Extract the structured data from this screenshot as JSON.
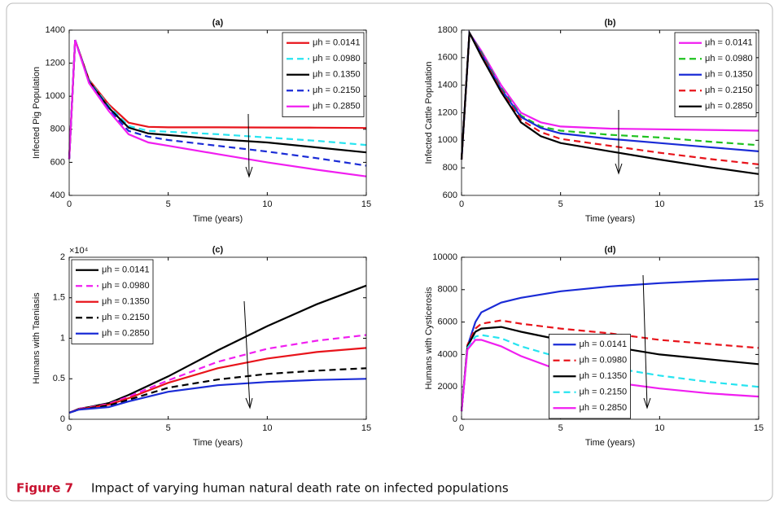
{
  "caption_label": "Figure 7",
  "caption": "Impact of varying human natural death rate on infected populations",
  "chart_data": [
    {
      "type": "line",
      "title": "(a)",
      "x_label": "Time (years)",
      "y_label": "Infected Pig Population",
      "legend": "upper right",
      "xlim": [
        0,
        15
      ],
      "xticks": [
        0,
        5,
        10,
        15
      ],
      "ylim": [
        400,
        1400
      ],
      "yticks": [
        400,
        600,
        800,
        1000,
        1200,
        1400
      ],
      "x": [
        0,
        0.3,
        1,
        2,
        3,
        4,
        5,
        7.5,
        10,
        12.5,
        15
      ],
      "series": [
        {
          "name": "μh = 0.0141",
          "color": "#e8141b",
          "dashed": false,
          "values": [
            620,
            1340,
            1100,
            950,
            840,
            815,
            812,
            812,
            811,
            810,
            808
          ]
        },
        {
          "name": "μh = 0.0980",
          "color": "#27e4f0",
          "dashed": true,
          "values": [
            620,
            1340,
            1095,
            940,
            820,
            790,
            785,
            770,
            750,
            730,
            705
          ]
        },
        {
          "name": "μh = 0.1350",
          "color": "#000000",
          "dashed": false,
          "values": [
            620,
            1340,
            1090,
            930,
            810,
            775,
            765,
            740,
            720,
            690,
            660
          ]
        },
        {
          "name": "μh = 0.2150",
          "color": "#1a2bd6",
          "dashed": true,
          "values": [
            620,
            1340,
            1085,
            920,
            790,
            755,
            735,
            700,
            665,
            625,
            580
          ]
        },
        {
          "name": "μh = 0.2850",
          "color": "#f01ef0",
          "dashed": false,
          "values": [
            620,
            1340,
            1080,
            910,
            770,
            720,
            700,
            650,
            600,
            555,
            515
          ]
        }
      ]
    },
    {
      "type": "line",
      "title": "(b)",
      "x_label": "Time (years)",
      "y_label": "Infected Cattle Population",
      "legend": "upper right",
      "xlim": [
        0,
        15
      ],
      "xticks": [
        0,
        5,
        10,
        15
      ],
      "ylim": [
        600,
        1800
      ],
      "yticks": [
        600,
        800,
        1000,
        1200,
        1400,
        1600,
        1800
      ],
      "x": [
        0,
        0.4,
        1,
        2,
        3,
        4,
        5,
        7.5,
        10,
        12.5,
        15
      ],
      "series": [
        {
          "name": "μh = 0.0141",
          "color": "#f01ef0",
          "dashed": false,
          "values": [
            860,
            1780,
            1650,
            1400,
            1200,
            1130,
            1100,
            1085,
            1080,
            1075,
            1070
          ]
        },
        {
          "name": "μh = 0.0980",
          "color": "#1fc21f",
          "dashed": true,
          "values": [
            860,
            1780,
            1640,
            1380,
            1180,
            1100,
            1070,
            1040,
            1020,
            990,
            965
          ]
        },
        {
          "name": "μh = 0.1350",
          "color": "#1a2bd6",
          "dashed": false,
          "values": [
            860,
            1780,
            1630,
            1370,
            1170,
            1090,
            1050,
            1010,
            980,
            950,
            920
          ]
        },
        {
          "name": "μh = 0.2150",
          "color": "#e8141b",
          "dashed": true,
          "values": [
            860,
            1780,
            1620,
            1360,
            1150,
            1060,
            1010,
            960,
            910,
            865,
            825
          ]
        },
        {
          "name": "μh = 0.2850",
          "color": "#000000",
          "dashed": false,
          "values": [
            860,
            1780,
            1610,
            1350,
            1130,
            1030,
            980,
            920,
            860,
            805,
            755
          ]
        }
      ]
    },
    {
      "type": "line",
      "title": "(c)",
      "x_label": "Time (years)",
      "y_label": "Humans with Taeniasis",
      "y_exponent_label": "×10⁴",
      "legend": "upper left",
      "xlim": [
        0,
        15
      ],
      "xticks": [
        0,
        5,
        10,
        15
      ],
      "ylim": [
        0,
        20000
      ],
      "yticks": [
        0,
        {
          "value": 5000,
          "label": "0.5"
        },
        {
          "value": 10000,
          "label": "1"
        },
        {
          "value": 15000,
          "label": "1.5"
        },
        {
          "value": 20000,
          "label": "2"
        }
      ],
      "x": [
        0,
        0.5,
        1,
        2,
        3,
        5,
        7.5,
        10,
        12.5,
        15
      ],
      "series": [
        {
          "name": "μh = 0.0141",
          "color": "#000000",
          "dashed": false,
          "values": [
            800,
            1300,
            1500,
            2000,
            3000,
            5300,
            8500,
            11500,
            14200,
            16500
          ]
        },
        {
          "name": "μh = 0.0980",
          "color": "#f01ef0",
          "dashed": true,
          "values": [
            800,
            1300,
            1450,
            1900,
            2800,
            4800,
            7100,
            8700,
            9700,
            10400
          ]
        },
        {
          "name": "μh = 0.1350",
          "color": "#e8141b",
          "dashed": false,
          "values": [
            800,
            1250,
            1400,
            1800,
            2600,
            4500,
            6300,
            7500,
            8300,
            8800
          ]
        },
        {
          "name": "μh = 0.2150",
          "color": "#000000",
          "dashed": true,
          "values": [
            800,
            1200,
            1350,
            1700,
            2400,
            3900,
            4900,
            5600,
            6000,
            6300
          ]
        },
        {
          "name": "μh = 0.2850",
          "color": "#1a2bd6",
          "dashed": false,
          "values": [
            800,
            1200,
            1300,
            1500,
            2200,
            3400,
            4200,
            4600,
            4850,
            5000
          ]
        }
      ]
    },
    {
      "type": "line",
      "title": "(d)",
      "x_label": "Time (years)",
      "y_label": "Humans with Cysticerosis",
      "legend": "lower center",
      "xlim": [
        0,
        15
      ],
      "xticks": [
        0,
        5,
        10,
        15
      ],
      "ylim": [
        0,
        10000
      ],
      "yticks": [
        0,
        2000,
        4000,
        6000,
        8000,
        10000
      ],
      "x": [
        0,
        0.3,
        0.7,
        1,
        2,
        3,
        5,
        7.5,
        10,
        12.5,
        15
      ],
      "series": [
        {
          "name": "μh = 0.0141",
          "color": "#1a2bd6",
          "dashed": false,
          "values": [
            500,
            4500,
            6000,
            6600,
            7200,
            7500,
            7900,
            8200,
            8400,
            8550,
            8650
          ]
        },
        {
          "name": "μh = 0.0980",
          "color": "#e8141b",
          "dashed": true,
          "values": [
            500,
            4600,
            5600,
            5900,
            6100,
            5900,
            5600,
            5300,
            4900,
            4650,
            4400
          ]
        },
        {
          "name": "μh = 0.1350",
          "color": "#000000",
          "dashed": false,
          "values": [
            500,
            4500,
            5400,
            5600,
            5700,
            5400,
            4900,
            4500,
            4000,
            3700,
            3400
          ]
        },
        {
          "name": "μh = 0.2150",
          "color": "#27e4f0",
          "dashed": true,
          "values": [
            500,
            4400,
            5100,
            5200,
            5000,
            4500,
            3800,
            3200,
            2700,
            2300,
            2000
          ]
        },
        {
          "name": "μh = 0.2850",
          "color": "#f01ef0",
          "dashed": false,
          "values": [
            500,
            4300,
            4900,
            4900,
            4500,
            3900,
            3000,
            2300,
            1900,
            1600,
            1400
          ]
        }
      ]
    }
  ]
}
